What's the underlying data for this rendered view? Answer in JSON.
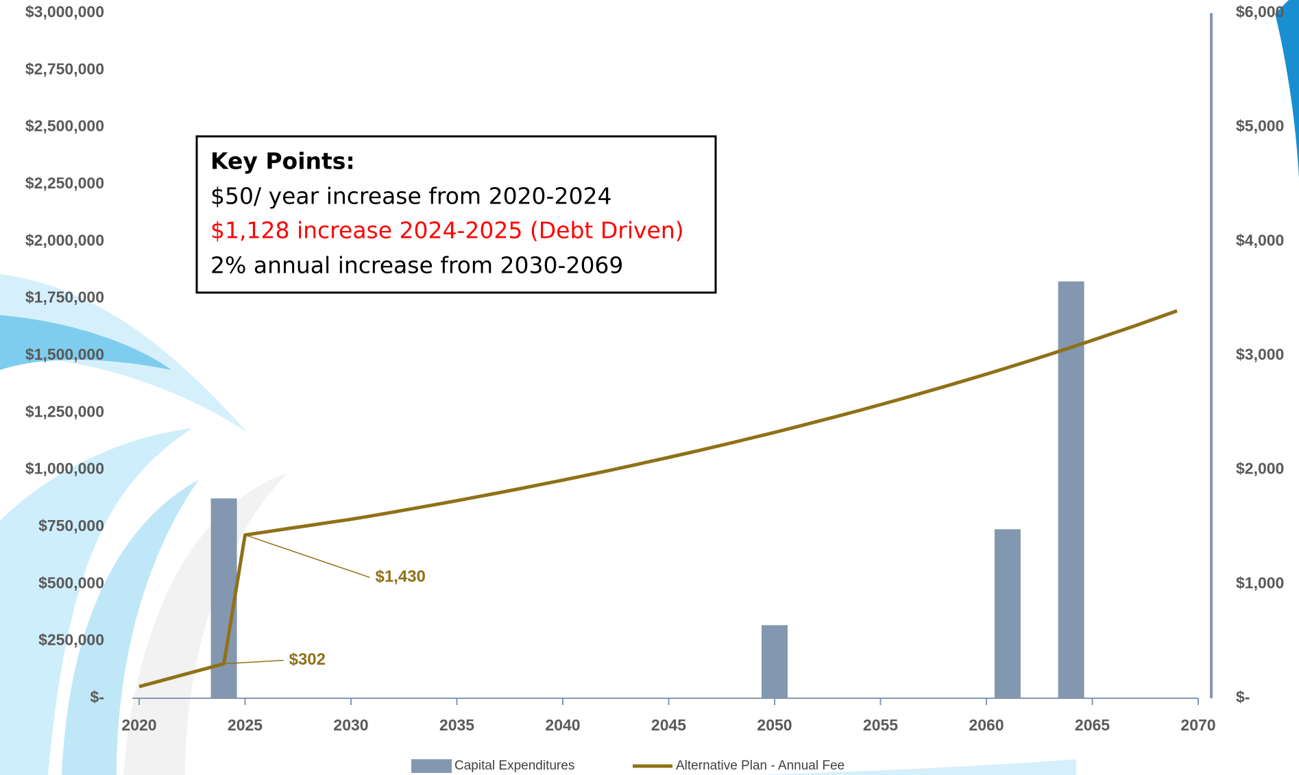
{
  "chart_data": {
    "type": "bar-line",
    "key_points": {
      "title": "Key Points:",
      "lines": [
        "$50/ year increase from 2020-2024",
        "$1,128 increase 2024-2025 (Debt Driven)",
        "2% annual increase from 2030-2069"
      ]
    },
    "xlim": [
      2020,
      2070
    ],
    "xticks": [
      2020,
      2025,
      2030,
      2035,
      2040,
      2045,
      2050,
      2055,
      2060,
      2065,
      2070
    ],
    "ylim": [
      0,
      3000000
    ],
    "yticks": [
      {
        "value": 0,
        "label": "$-"
      },
      {
        "value": 250000,
        "label": "$250,000"
      },
      {
        "value": 500000,
        "label": "$500,000"
      },
      {
        "value": 750000,
        "label": "$750,000"
      },
      {
        "value": 1000000,
        "label": "$1,000,000"
      },
      {
        "value": 1250000,
        "label": "$1,250,000"
      },
      {
        "value": 1500000,
        "label": "$1,500,000"
      },
      {
        "value": 1750000,
        "label": "$1,750,000"
      },
      {
        "value": 2000000,
        "label": "$2,000,000"
      },
      {
        "value": 2250000,
        "label": "$2,250,000"
      },
      {
        "value": 2500000,
        "label": "$2,500,000"
      },
      {
        "value": 2750000,
        "label": "$2,750,000"
      },
      {
        "value": 3000000,
        "label": "$3,000,000"
      }
    ],
    "y2lim": [
      0,
      6000
    ],
    "y2ticks": [
      {
        "value": 0,
        "label": "$-"
      },
      {
        "value": 1000,
        "label": "$1,000"
      },
      {
        "value": 2000,
        "label": "$2,000"
      },
      {
        "value": 3000,
        "label": "$3,000"
      },
      {
        "value": 4000,
        "label": "$4,000"
      },
      {
        "value": 5000,
        "label": "$5,000"
      },
      {
        "value": 6000,
        "label": "$6,000"
      }
    ],
    "series": [
      {
        "name": "Capital Expenditures",
        "type": "bar",
        "color": "#8497b0",
        "x": [
          2024,
          2050,
          2061,
          2064
        ],
        "values": [
          875000,
          320000,
          740000,
          1825000
        ]
      },
      {
        "name": "Alternative Plan - Annual Fee",
        "type": "line",
        "axis": "y2",
        "color": "#8f7117",
        "x": [
          2020,
          2021,
          2022,
          2023,
          2024,
          2025,
          2026,
          2027,
          2028,
          2029,
          2030,
          2031,
          2032,
          2033,
          2034,
          2035,
          2036,
          2037,
          2038,
          2039,
          2040,
          2041,
          2042,
          2043,
          2044,
          2045,
          2046,
          2047,
          2048,
          2049,
          2050,
          2051,
          2052,
          2053,
          2054,
          2055,
          2056,
          2057,
          2058,
          2059,
          2060,
          2061,
          2062,
          2063,
          2064,
          2065,
          2066,
          2067,
          2068,
          2069
        ],
        "values": [
          102,
          152,
          202,
          252,
          302,
          1430,
          1457,
          1485,
          1512,
          1540,
          1567,
          1598,
          1630,
          1663,
          1696,
          1730,
          1765,
          1800,
          1836,
          1873,
          1910,
          1948,
          1987,
          2027,
          2068,
          2109,
          2151,
          2194,
          2238,
          2283,
          2328,
          2375,
          2423,
          2471,
          2520,
          2571,
          2622,
          2675,
          2728,
          2783,
          2838,
          2895,
          2953,
          3012,
          3072,
          3134,
          3197,
          3260,
          3326,
          3392
        ]
      }
    ],
    "annotations": [
      {
        "text": "$302",
        "x": 2024,
        "value": 302
      },
      {
        "text": "$1,430",
        "x": 2025,
        "value": 1430
      }
    ]
  }
}
